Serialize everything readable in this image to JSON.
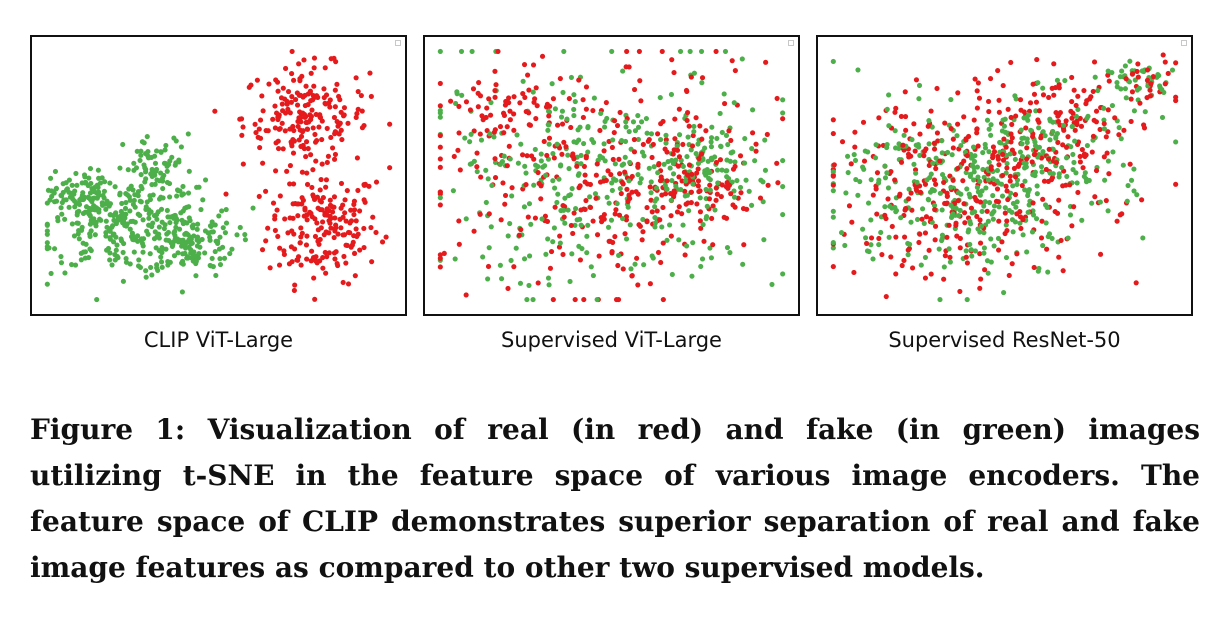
{
  "legend_colors": {
    "real": "#e41a1c",
    "fake": "#4daf4a"
  },
  "chart_data": [
    {
      "type": "scatter",
      "title": "CLIP ViT-Large",
      "xlabel": "",
      "ylabel": "",
      "xlim": [
        0,
        1
      ],
      "ylim": [
        0,
        1
      ],
      "grid": false,
      "series": [
        {
          "name": "real",
          "color": "#e41a1c",
          "clusters": [
            {
              "cx": 0.8,
              "cy": 0.3,
              "sx": 0.08,
              "sy": 0.11,
              "n": 190
            },
            {
              "cx": 0.75,
              "cy": 0.73,
              "sx": 0.09,
              "sy": 0.1,
              "n": 200
            }
          ]
        },
        {
          "name": "fake",
          "color": "#4daf4a",
          "clusters": [
            {
              "cx": 0.22,
              "cy": 0.3,
              "sx": 0.12,
              "sy": 0.09,
              "n": 260
            },
            {
              "cx": 0.41,
              "cy": 0.24,
              "sx": 0.07,
              "sy": 0.07,
              "n": 130
            },
            {
              "cx": 0.1,
              "cy": 0.42,
              "sx": 0.04,
              "sy": 0.05,
              "n": 80
            },
            {
              "cx": 0.33,
              "cy": 0.52,
              "sx": 0.05,
              "sy": 0.07,
              "n": 80
            }
          ]
        }
      ]
    },
    {
      "type": "scatter",
      "title": "Supervised ViT-Large",
      "xlabel": "",
      "ylabel": "",
      "xlim": [
        0,
        1
      ],
      "ylim": [
        0,
        1
      ],
      "grid": false,
      "series": [
        {
          "name": "real",
          "color": "#e41a1c",
          "clusters": [
            {
              "cx": 0.48,
              "cy": 0.5,
              "sx": 0.24,
              "sy": 0.23,
              "n": 300
            },
            {
              "cx": 0.72,
              "cy": 0.45,
              "sx": 0.08,
              "sy": 0.09,
              "n": 80
            },
            {
              "cx": 0.22,
              "cy": 0.75,
              "sx": 0.08,
              "sy": 0.1,
              "n": 60
            }
          ]
        },
        {
          "name": "fake",
          "color": "#4daf4a",
          "clusters": [
            {
              "cx": 0.48,
              "cy": 0.5,
              "sx": 0.25,
              "sy": 0.22,
              "n": 340
            },
            {
              "cx": 0.78,
              "cy": 0.55,
              "sx": 0.07,
              "sy": 0.08,
              "n": 80
            }
          ]
        }
      ]
    },
    {
      "type": "scatter",
      "title": "Supervised ResNet-50",
      "xlabel": "",
      "ylabel": "",
      "xlim": [
        0,
        1
      ],
      "ylim": [
        0,
        1
      ],
      "grid": false,
      "series": [
        {
          "name": "real",
          "color": "#e41a1c",
          "clusters": [
            {
              "cx": 0.4,
              "cy": 0.45,
              "sx": 0.2,
              "sy": 0.18,
              "n": 320
            },
            {
              "cx": 0.65,
              "cy": 0.7,
              "sx": 0.12,
              "sy": 0.1,
              "n": 120
            },
            {
              "cx": 0.88,
              "cy": 0.86,
              "sx": 0.06,
              "sy": 0.05,
              "n": 30
            }
          ]
        },
        {
          "name": "fake",
          "color": "#4daf4a",
          "clusters": [
            {
              "cx": 0.38,
              "cy": 0.44,
              "sx": 0.19,
              "sy": 0.16,
              "n": 340
            },
            {
              "cx": 0.62,
              "cy": 0.64,
              "sx": 0.12,
              "sy": 0.1,
              "n": 110
            },
            {
              "cx": 0.88,
              "cy": 0.88,
              "sx": 0.05,
              "sy": 0.04,
              "n": 40
            }
          ]
        }
      ]
    }
  ],
  "caption": "Figure 1: Visualization of real (in red) and fake (in green) images utilizing t-SNE in the feature space of various image encoders. The feature space of CLIP demonstrates superior separation of real and fake image features as compared to other two supervised models."
}
